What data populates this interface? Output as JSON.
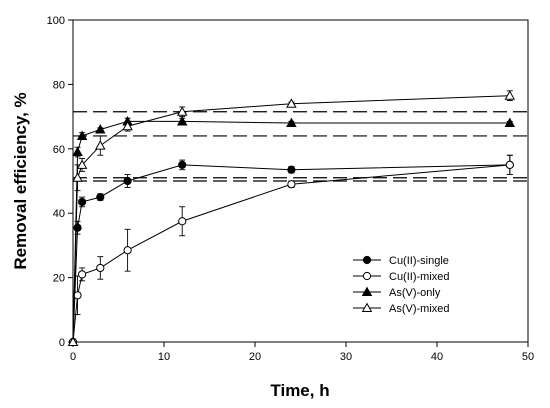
{
  "chart_data": {
    "type": "line",
    "xlabel": "Time, h",
    "ylabel": "Removal efficiency, %",
    "xlim": [
      0,
      50
    ],
    "ylim": [
      0,
      100
    ],
    "xticks": [
      0,
      10,
      20,
      30,
      40,
      50
    ],
    "yticks": [
      0,
      20,
      40,
      60,
      80,
      100
    ],
    "grid": false,
    "legend_position": "lower-right",
    "series": [
      {
        "name": "Cu(II)-single",
        "marker": "circle",
        "filled": true,
        "x": [
          0,
          0.5,
          1,
          3,
          6,
          12,
          24,
          48
        ],
        "y": [
          0,
          35.5,
          43.5,
          45,
          50,
          55,
          53.5,
          55
        ],
        "err": [
          0,
          2,
          1.5,
          1,
          2,
          1.5,
          1,
          3
        ]
      },
      {
        "name": "Cu(II)-mixed",
        "marker": "circle",
        "filled": false,
        "x": [
          0,
          0.5,
          1,
          3,
          6,
          12,
          24,
          48
        ],
        "y": [
          0,
          14.5,
          21,
          23,
          28.5,
          37.5,
          49,
          55
        ],
        "err": [
          0,
          6,
          2,
          3.5,
          6.5,
          4.5,
          1,
          3
        ]
      },
      {
        "name": "As(V)-only",
        "marker": "triangle",
        "filled": true,
        "x": [
          0,
          0.5,
          1,
          3,
          6,
          12,
          24,
          48
        ],
        "y": [
          0,
          59,
          64,
          66,
          68.5,
          68.5,
          68,
          68
        ],
        "err": [
          0,
          1.5,
          1,
          0.5,
          1,
          1,
          0.5,
          0.5
        ]
      },
      {
        "name": "As(V)-mixed",
        "marker": "triangle",
        "filled": false,
        "x": [
          0,
          0.5,
          1,
          3,
          6,
          12,
          24,
          48
        ],
        "y": [
          0,
          51,
          55,
          61,
          67,
          71.5,
          74,
          76.5
        ],
        "err": [
          0,
          4,
          2,
          3,
          1.5,
          1.5,
          0.5,
          1.5
        ]
      }
    ],
    "reference_lines": [
      71.5,
      64,
      51,
      50
    ]
  }
}
